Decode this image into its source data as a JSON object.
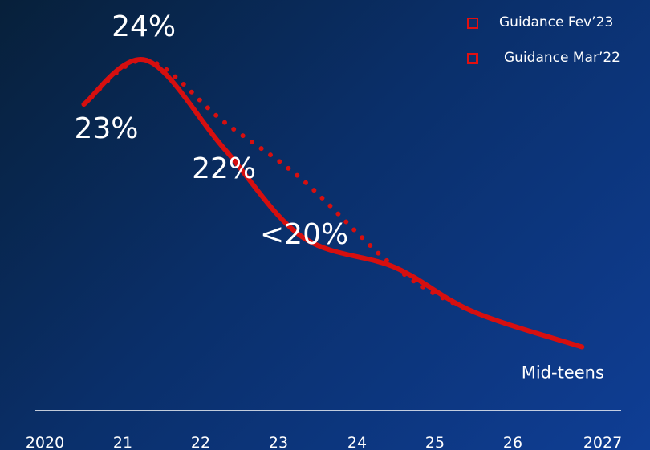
{
  "legend": {
    "items": [
      {
        "label": "Guidance Fev’23",
        "style": "solid",
        "color": "#d60f0f"
      },
      {
        "label": "Guidance Mar’22",
        "style": "dotted",
        "color": "#d60f0f"
      }
    ]
  },
  "chart_data": {
    "type": "line",
    "title": "",
    "xlabel": "",
    "ylabel": "",
    "x_ticks": [
      "2020",
      "21",
      "22",
      "23",
      "24",
      "25",
      "26",
      "2027"
    ],
    "series": [
      {
        "name": "Guidance Fev’23",
        "style": "solid",
        "color": "#d60f0f",
        "x": [
          2020.5,
          2021.3,
          2022.3,
          2023.3,
          2024.5,
          2025.5,
          2026.9
        ],
        "y": [
          23.0,
          24.0,
          22.0,
          20.0,
          19.3,
          18.3,
          17.5
        ]
      },
      {
        "name": "Guidance Mar’22",
        "style": "dotted",
        "color": "#d60f0f",
        "x": [
          2020.5,
          2021.3,
          2022.3,
          2023.3,
          2024.5,
          2025.5,
          2026.9
        ],
        "y": [
          23.0,
          24.0,
          22.6,
          21.3,
          19.3,
          18.3,
          17.5
        ]
      }
    ],
    "annotations": [
      {
        "text": "23%",
        "x": 2020.5,
        "y": 23.0
      },
      {
        "text": "24%",
        "x": 2021.3,
        "y": 24.0
      },
      {
        "text": "22%",
        "x": 2022.3,
        "y": 22.0
      },
      {
        "text": "<20%",
        "x": 2023.3,
        "y": 20.0
      },
      {
        "text": "Mid-teens",
        "x": 2026.9,
        "y": 17.5
      }
    ],
    "grid": false,
    "legend_position": "top-right"
  }
}
